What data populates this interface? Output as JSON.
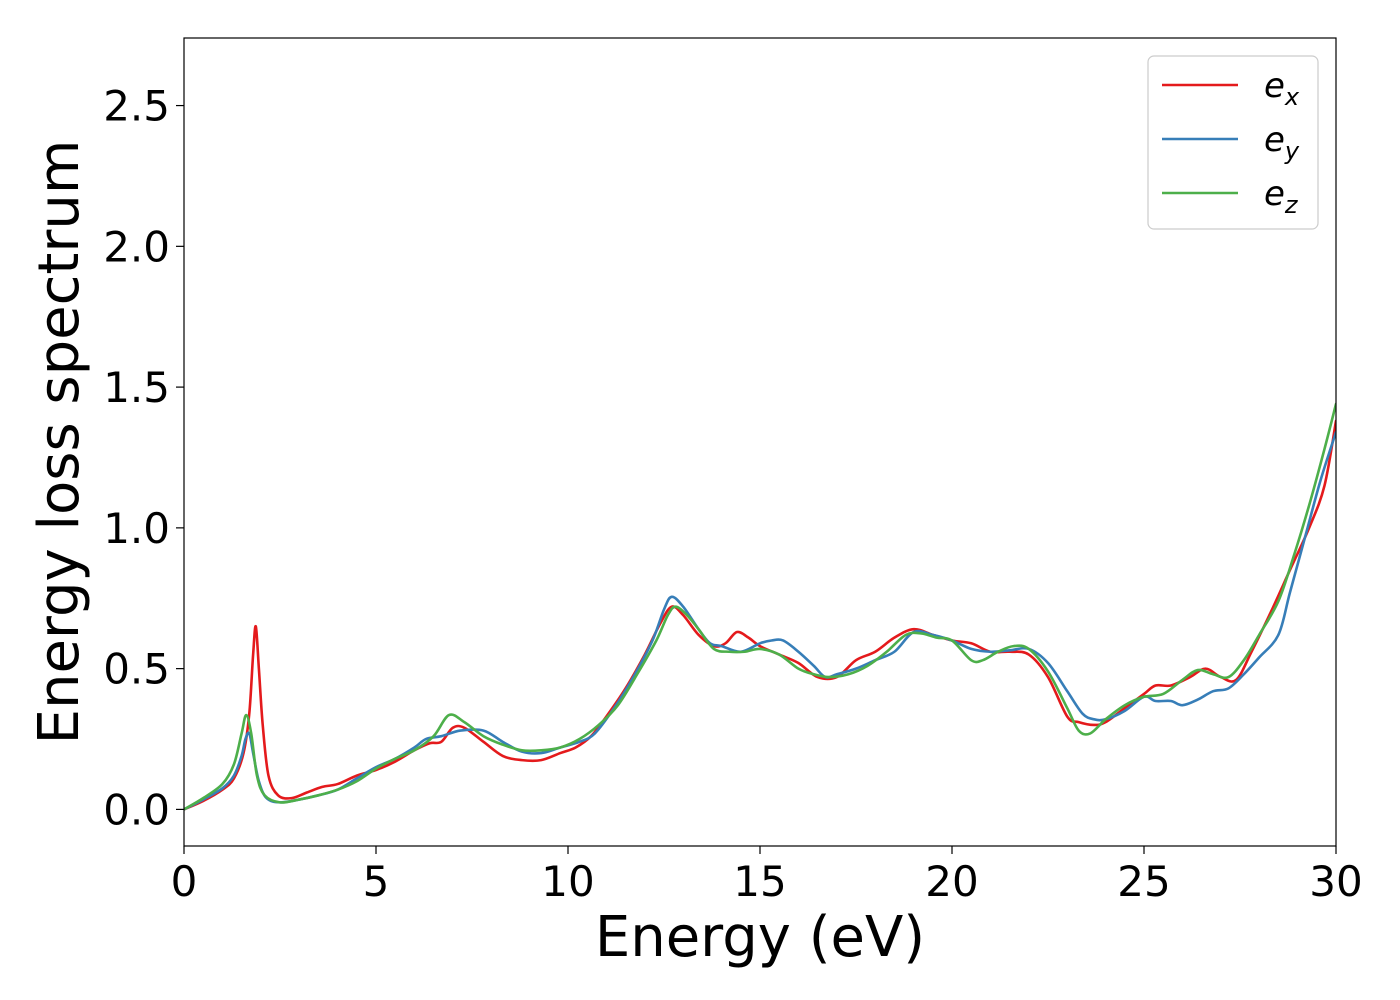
{
  "chart_data": {
    "type": "line",
    "title": "",
    "xlabel": "Energy (eV)",
    "ylabel": "Energy loss spectrum",
    "xlim": [
      0,
      30
    ],
    "ylim": [
      -0.13,
      2.74
    ],
    "xticks": [
      0,
      5,
      10,
      15,
      20,
      25,
      30
    ],
    "xtick_labels": [
      "0",
      "5",
      "10",
      "15",
      "20",
      "25",
      "30"
    ],
    "yticks": [
      0.0,
      0.5,
      1.0,
      1.5,
      2.0,
      2.5
    ],
    "ytick_labels": [
      "0.0",
      "0.5",
      "1.0",
      "1.5",
      "2.0",
      "2.5"
    ],
    "grid": false,
    "legend_position": "top-right",
    "series": [
      {
        "name": "e_x",
        "label_base": "e",
        "label_sub": "x",
        "color": "#e41a1c",
        "points": [
          [
            0,
            0.0
          ],
          [
            0.5,
            0.03
          ],
          [
            1.0,
            0.07
          ],
          [
            1.3,
            0.11
          ],
          [
            1.55,
            0.2
          ],
          [
            1.7,
            0.34
          ],
          [
            1.8,
            0.55
          ],
          [
            1.87,
            0.65
          ],
          [
            1.95,
            0.5
          ],
          [
            2.05,
            0.3
          ],
          [
            2.2,
            0.12
          ],
          [
            2.45,
            0.05
          ],
          [
            2.8,
            0.04
          ],
          [
            3.2,
            0.06
          ],
          [
            3.6,
            0.08
          ],
          [
            4.0,
            0.09
          ],
          [
            4.5,
            0.12
          ],
          [
            5.0,
            0.14
          ],
          [
            5.5,
            0.17
          ],
          [
            6.0,
            0.21
          ],
          [
            6.4,
            0.235
          ],
          [
            6.7,
            0.24
          ],
          [
            7.0,
            0.29
          ],
          [
            7.3,
            0.29
          ],
          [
            7.8,
            0.24
          ],
          [
            8.3,
            0.19
          ],
          [
            8.8,
            0.175
          ],
          [
            9.3,
            0.175
          ],
          [
            9.8,
            0.2
          ],
          [
            10.2,
            0.22
          ],
          [
            10.6,
            0.26
          ],
          [
            11.0,
            0.33
          ],
          [
            11.5,
            0.43
          ],
          [
            12.0,
            0.55
          ],
          [
            12.4,
            0.66
          ],
          [
            12.7,
            0.72
          ],
          [
            13.0,
            0.69
          ],
          [
            13.4,
            0.62
          ],
          [
            13.8,
            0.58
          ],
          [
            14.1,
            0.59
          ],
          [
            14.4,
            0.63
          ],
          [
            14.7,
            0.61
          ],
          [
            15.0,
            0.58
          ],
          [
            15.5,
            0.55
          ],
          [
            16.0,
            0.52
          ],
          [
            16.5,
            0.47
          ],
          [
            17.0,
            0.47
          ],
          [
            17.5,
            0.53
          ],
          [
            18.0,
            0.56
          ],
          [
            18.5,
            0.61
          ],
          [
            19.0,
            0.64
          ],
          [
            19.5,
            0.62
          ],
          [
            20.0,
            0.6
          ],
          [
            20.5,
            0.59
          ],
          [
            21.0,
            0.56
          ],
          [
            21.5,
            0.56
          ],
          [
            22.0,
            0.55
          ],
          [
            22.5,
            0.47
          ],
          [
            23.0,
            0.33
          ],
          [
            23.3,
            0.31
          ],
          [
            23.7,
            0.3
          ],
          [
            24.0,
            0.31
          ],
          [
            24.5,
            0.36
          ],
          [
            25.0,
            0.41
          ],
          [
            25.3,
            0.44
          ],
          [
            25.7,
            0.44
          ],
          [
            26.2,
            0.47
          ],
          [
            26.6,
            0.5
          ],
          [
            27.0,
            0.47
          ],
          [
            27.4,
            0.46
          ],
          [
            27.8,
            0.56
          ],
          [
            28.3,
            0.7
          ],
          [
            28.8,
            0.85
          ],
          [
            29.3,
            1.0
          ],
          [
            29.7,
            1.15
          ],
          [
            30.0,
            1.38
          ]
        ]
      },
      {
        "name": "e_y",
        "label_base": "e",
        "label_sub": "y",
        "color": "#377eb8",
        "points": [
          [
            0,
            0.0
          ],
          [
            0.5,
            0.035
          ],
          [
            1.0,
            0.075
          ],
          [
            1.3,
            0.12
          ],
          [
            1.5,
            0.19
          ],
          [
            1.6,
            0.25
          ],
          [
            1.7,
            0.27
          ],
          [
            1.8,
            0.2
          ],
          [
            1.95,
            0.1
          ],
          [
            2.15,
            0.04
          ],
          [
            2.5,
            0.025
          ],
          [
            3.0,
            0.035
          ],
          [
            3.5,
            0.05
          ],
          [
            4.0,
            0.07
          ],
          [
            4.5,
            0.11
          ],
          [
            5.0,
            0.15
          ],
          [
            5.5,
            0.18
          ],
          [
            6.0,
            0.22
          ],
          [
            6.3,
            0.25
          ],
          [
            6.7,
            0.26
          ],
          [
            7.2,
            0.28
          ],
          [
            7.8,
            0.28
          ],
          [
            8.3,
            0.24
          ],
          [
            8.8,
            0.205
          ],
          [
            9.3,
            0.2
          ],
          [
            9.8,
            0.22
          ],
          [
            10.3,
            0.24
          ],
          [
            10.7,
            0.27
          ],
          [
            11.2,
            0.36
          ],
          [
            11.7,
            0.47
          ],
          [
            12.2,
            0.6
          ],
          [
            12.5,
            0.71
          ],
          [
            12.7,
            0.755
          ],
          [
            13.0,
            0.72
          ],
          [
            13.4,
            0.64
          ],
          [
            13.7,
            0.59
          ],
          [
            14.0,
            0.58
          ],
          [
            14.5,
            0.56
          ],
          [
            15.0,
            0.59
          ],
          [
            15.3,
            0.6
          ],
          [
            15.6,
            0.6
          ],
          [
            16.0,
            0.56
          ],
          [
            16.4,
            0.51
          ],
          [
            16.7,
            0.47
          ],
          [
            17.0,
            0.48
          ],
          [
            17.5,
            0.5
          ],
          [
            18.0,
            0.53
          ],
          [
            18.5,
            0.56
          ],
          [
            19.0,
            0.63
          ],
          [
            19.5,
            0.62
          ],
          [
            20.0,
            0.6
          ],
          [
            20.5,
            0.57
          ],
          [
            21.0,
            0.56
          ],
          [
            21.5,
            0.565
          ],
          [
            22.0,
            0.57
          ],
          [
            22.5,
            0.52
          ],
          [
            23.0,
            0.42
          ],
          [
            23.4,
            0.34
          ],
          [
            23.7,
            0.32
          ],
          [
            24.0,
            0.32
          ],
          [
            24.5,
            0.35
          ],
          [
            25.0,
            0.4
          ],
          [
            25.3,
            0.385
          ],
          [
            25.7,
            0.385
          ],
          [
            26.0,
            0.37
          ],
          [
            26.4,
            0.39
          ],
          [
            26.8,
            0.42
          ],
          [
            27.2,
            0.43
          ],
          [
            27.6,
            0.48
          ],
          [
            28.0,
            0.54
          ],
          [
            28.5,
            0.62
          ],
          [
            28.8,
            0.77
          ],
          [
            29.2,
            0.97
          ],
          [
            29.6,
            1.17
          ],
          [
            30.0,
            1.34
          ]
        ]
      },
      {
        "name": "e_z",
        "label_base": "e",
        "label_sub": "z",
        "color": "#4daf4a",
        "points": [
          [
            0,
            0.0
          ],
          [
            0.5,
            0.04
          ],
          [
            1.0,
            0.09
          ],
          [
            1.3,
            0.16
          ],
          [
            1.5,
            0.27
          ],
          [
            1.62,
            0.335
          ],
          [
            1.75,
            0.27
          ],
          [
            1.9,
            0.12
          ],
          [
            2.1,
            0.05
          ],
          [
            2.5,
            0.025
          ],
          [
            3.0,
            0.035
          ],
          [
            3.5,
            0.05
          ],
          [
            4.0,
            0.07
          ],
          [
            4.5,
            0.1
          ],
          [
            5.0,
            0.145
          ],
          [
            5.5,
            0.18
          ],
          [
            6.0,
            0.21
          ],
          [
            6.5,
            0.26
          ],
          [
            6.9,
            0.335
          ],
          [
            7.3,
            0.31
          ],
          [
            7.8,
            0.26
          ],
          [
            8.3,
            0.23
          ],
          [
            8.8,
            0.21
          ],
          [
            9.3,
            0.21
          ],
          [
            9.8,
            0.22
          ],
          [
            10.3,
            0.25
          ],
          [
            10.8,
            0.3
          ],
          [
            11.3,
            0.37
          ],
          [
            11.8,
            0.48
          ],
          [
            12.3,
            0.6
          ],
          [
            12.6,
            0.69
          ],
          [
            12.8,
            0.72
          ],
          [
            13.1,
            0.69
          ],
          [
            13.4,
            0.64
          ],
          [
            13.8,
            0.57
          ],
          [
            14.2,
            0.56
          ],
          [
            14.6,
            0.56
          ],
          [
            15.0,
            0.57
          ],
          [
            15.5,
            0.55
          ],
          [
            16.0,
            0.5
          ],
          [
            16.4,
            0.48
          ],
          [
            16.8,
            0.47
          ],
          [
            17.3,
            0.48
          ],
          [
            17.8,
            0.51
          ],
          [
            18.3,
            0.56
          ],
          [
            18.8,
            0.62
          ],
          [
            19.2,
            0.625
          ],
          [
            19.6,
            0.61
          ],
          [
            20.0,
            0.6
          ],
          [
            20.5,
            0.53
          ],
          [
            20.8,
            0.53
          ],
          [
            21.2,
            0.56
          ],
          [
            21.6,
            0.58
          ],
          [
            22.0,
            0.57
          ],
          [
            22.5,
            0.49
          ],
          [
            23.0,
            0.36
          ],
          [
            23.3,
            0.28
          ],
          [
            23.6,
            0.27
          ],
          [
            24.0,
            0.32
          ],
          [
            24.5,
            0.37
          ],
          [
            25.0,
            0.4
          ],
          [
            25.5,
            0.41
          ],
          [
            26.0,
            0.46
          ],
          [
            26.4,
            0.495
          ],
          [
            26.8,
            0.48
          ],
          [
            27.2,
            0.47
          ],
          [
            27.6,
            0.53
          ],
          [
            28.0,
            0.62
          ],
          [
            28.5,
            0.74
          ],
          [
            28.9,
            0.9
          ],
          [
            29.3,
            1.08
          ],
          [
            29.7,
            1.28
          ],
          [
            30.0,
            1.44
          ]
        ]
      }
    ]
  }
}
